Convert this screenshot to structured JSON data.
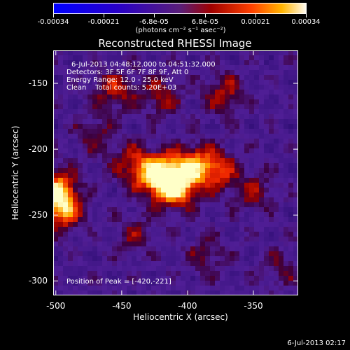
{
  "colorbar": {
    "ticks": [
      "-0.00034",
      "-0.00021",
      "-6.8e-05",
      "6.8e-05",
      "0.00021",
      "0.00034"
    ],
    "units": "(photons cm⁻² s⁻¹ asec⁻²)",
    "range": [
      -0.00034,
      0.00034
    ]
  },
  "annotations": {
    "time_range": "6-Jul-2013 04:48:12.000 to 04:51:32.000",
    "detectors": "Detectors: 3F 5F 6F 7F 8F 9F, Att 0",
    "energy": "Energy Range: 12.0 - 25.0 keV",
    "clean": "Clean    Total counts: 5.20E+03",
    "peak": "Position of Peak = [-420,-221]"
  },
  "footer": {
    "timestamp": "6-Jul-2013 02:17"
  },
  "chart_data": {
    "type": "heatmap",
    "title": "Reconstructed RHESSI Image",
    "xlabel": "Heliocentric X (arcsec)",
    "ylabel": "Heliocentric Y (arcsec)",
    "xlim": [
      -502,
      -316
    ],
    "ylim": [
      -311,
      -125
    ],
    "xticks": [
      -500,
      -450,
      -400,
      -350
    ],
    "yticks": [
      -150,
      -200,
      -250,
      -300
    ],
    "colormap": "purple-red-yellow",
    "peak": {
      "x": -420,
      "y": -221
    },
    "blobs": [
      {
        "x": -420,
        "y": -221,
        "amp": 1.0
      },
      {
        "x": -408,
        "y": -229,
        "amp": 0.75
      },
      {
        "x": -396,
        "y": -212,
        "amp": 0.6
      },
      {
        "x": -378,
        "y": -216,
        "amp": 0.55
      },
      {
        "x": -440,
        "y": -212,
        "amp": 0.5
      },
      {
        "x": -500,
        "y": -232,
        "amp": 0.85
      },
      {
        "x": -495,
        "y": -247,
        "amp": 0.6
      },
      {
        "x": -455,
        "y": -155,
        "amp": 0.45
      },
      {
        "x": -420,
        "y": -160,
        "amp": 0.4
      },
      {
        "x": -372,
        "y": -158,
        "amp": 0.42
      },
      {
        "x": -350,
        "y": -232,
        "amp": 0.35
      },
      {
        "x": -385,
        "y": -280,
        "amp": 0.3
      },
      {
        "x": -440,
        "y": -265,
        "amp": 0.28
      },
      {
        "x": -470,
        "y": -190,
        "amp": 0.3
      },
      {
        "x": -330,
        "y": -290,
        "amp": 0.25
      }
    ]
  }
}
